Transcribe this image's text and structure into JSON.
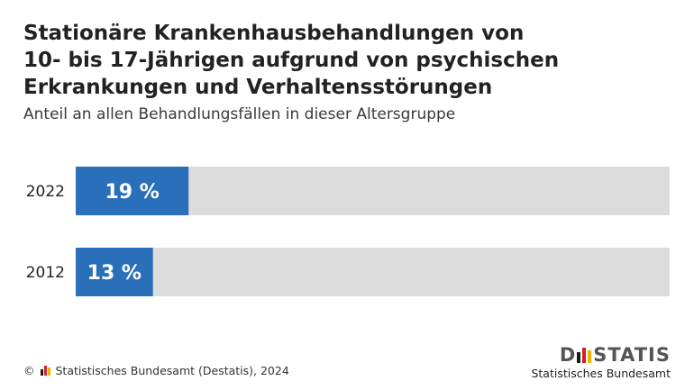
{
  "header": {
    "title": "Stationäre Krankenhausbehandlungen von\n10- bis 17-Jährigen aufgrund von psychischen\nErkrankungen und Verhaltensstörungen",
    "subtitle": "Anteil an allen Behandlungsfällen in dieser Altersgruppe"
  },
  "chart_data": {
    "type": "bar",
    "orientation": "horizontal",
    "categories": [
      "2022",
      "2012"
    ],
    "values": [
      19,
      13
    ],
    "data_labels": [
      "19 %",
      "13 %"
    ],
    "xlim": [
      0,
      100
    ],
    "bar_color": "#2a6fba",
    "track_color": "#dcdcdc",
    "grid": false,
    "legend": "none"
  },
  "footer": {
    "copyright": "©",
    "source": "Statistisches Bundesamt (Destatis), 2024"
  },
  "brand": {
    "word_start": "D",
    "word_end": "STATIS",
    "subline": "Statistisches Bundesamt",
    "bar_colors": [
      "#1a1a1a",
      "#d4202a",
      "#f0b400"
    ]
  }
}
